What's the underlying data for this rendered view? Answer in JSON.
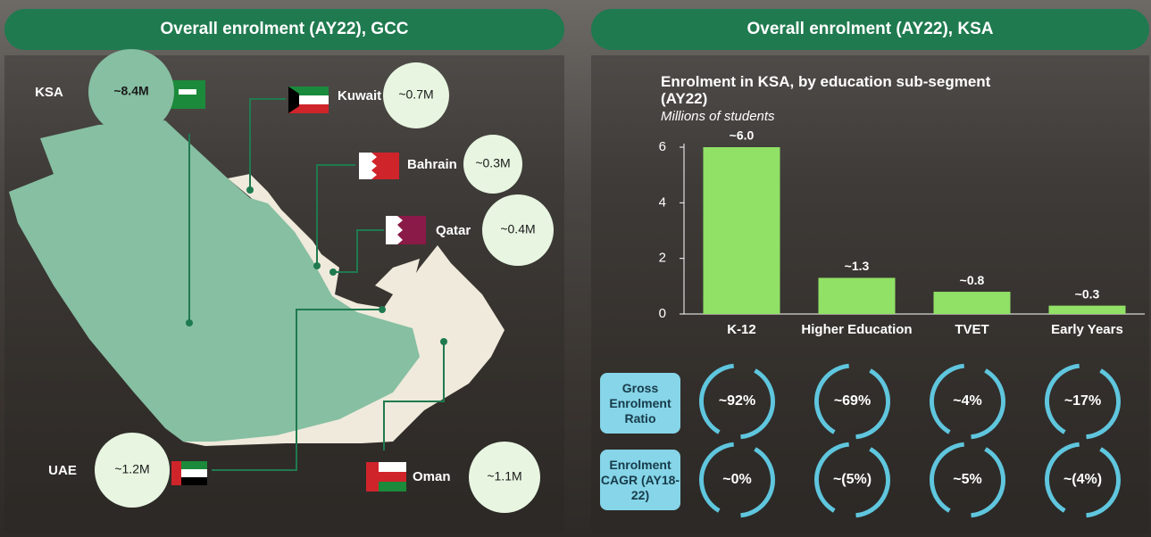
{
  "left_panel": {
    "title": "Overall enrolment (AY22), GCC",
    "countries": [
      {
        "name": "KSA",
        "value": "~8.4M"
      },
      {
        "name": "Kuwait",
        "value": "~0.7M"
      },
      {
        "name": "Bahrain",
        "value": "~0.3M"
      },
      {
        "name": "Qatar",
        "value": "~0.4M"
      },
      {
        "name": "UAE",
        "value": "~1.2M"
      },
      {
        "name": "Oman",
        "value": "~1.1M"
      }
    ]
  },
  "right_panel": {
    "title": "Overall enrolment (AY22), KSA"
  },
  "chart_data": {
    "type": "bar",
    "title": "Enrolment in KSA, by education sub-segment (AY22)",
    "subtitle": "Millions of students",
    "categories": [
      "K-12",
      "Higher Education",
      "TVET",
      "Early Years"
    ],
    "values": [
      6.0,
      1.3,
      0.8,
      0.3
    ],
    "value_labels": [
      "~6.0",
      "~1.3",
      "~0.8",
      "~0.3"
    ],
    "color": "#90e166",
    "ylim": [
      0,
      6
    ],
    "yticks": [
      0,
      2,
      4,
      6
    ]
  },
  "metrics": {
    "rows": [
      {
        "label": "Gross Enrolment Ratio",
        "values": [
          "~92%",
          "~69%",
          "~4%",
          "~17%"
        ]
      },
      {
        "label": "Enrolment CAGR (AY18-22)",
        "values": [
          "~0%",
          "~(5%)",
          "~5%",
          "~(4%)"
        ]
      }
    ]
  }
}
